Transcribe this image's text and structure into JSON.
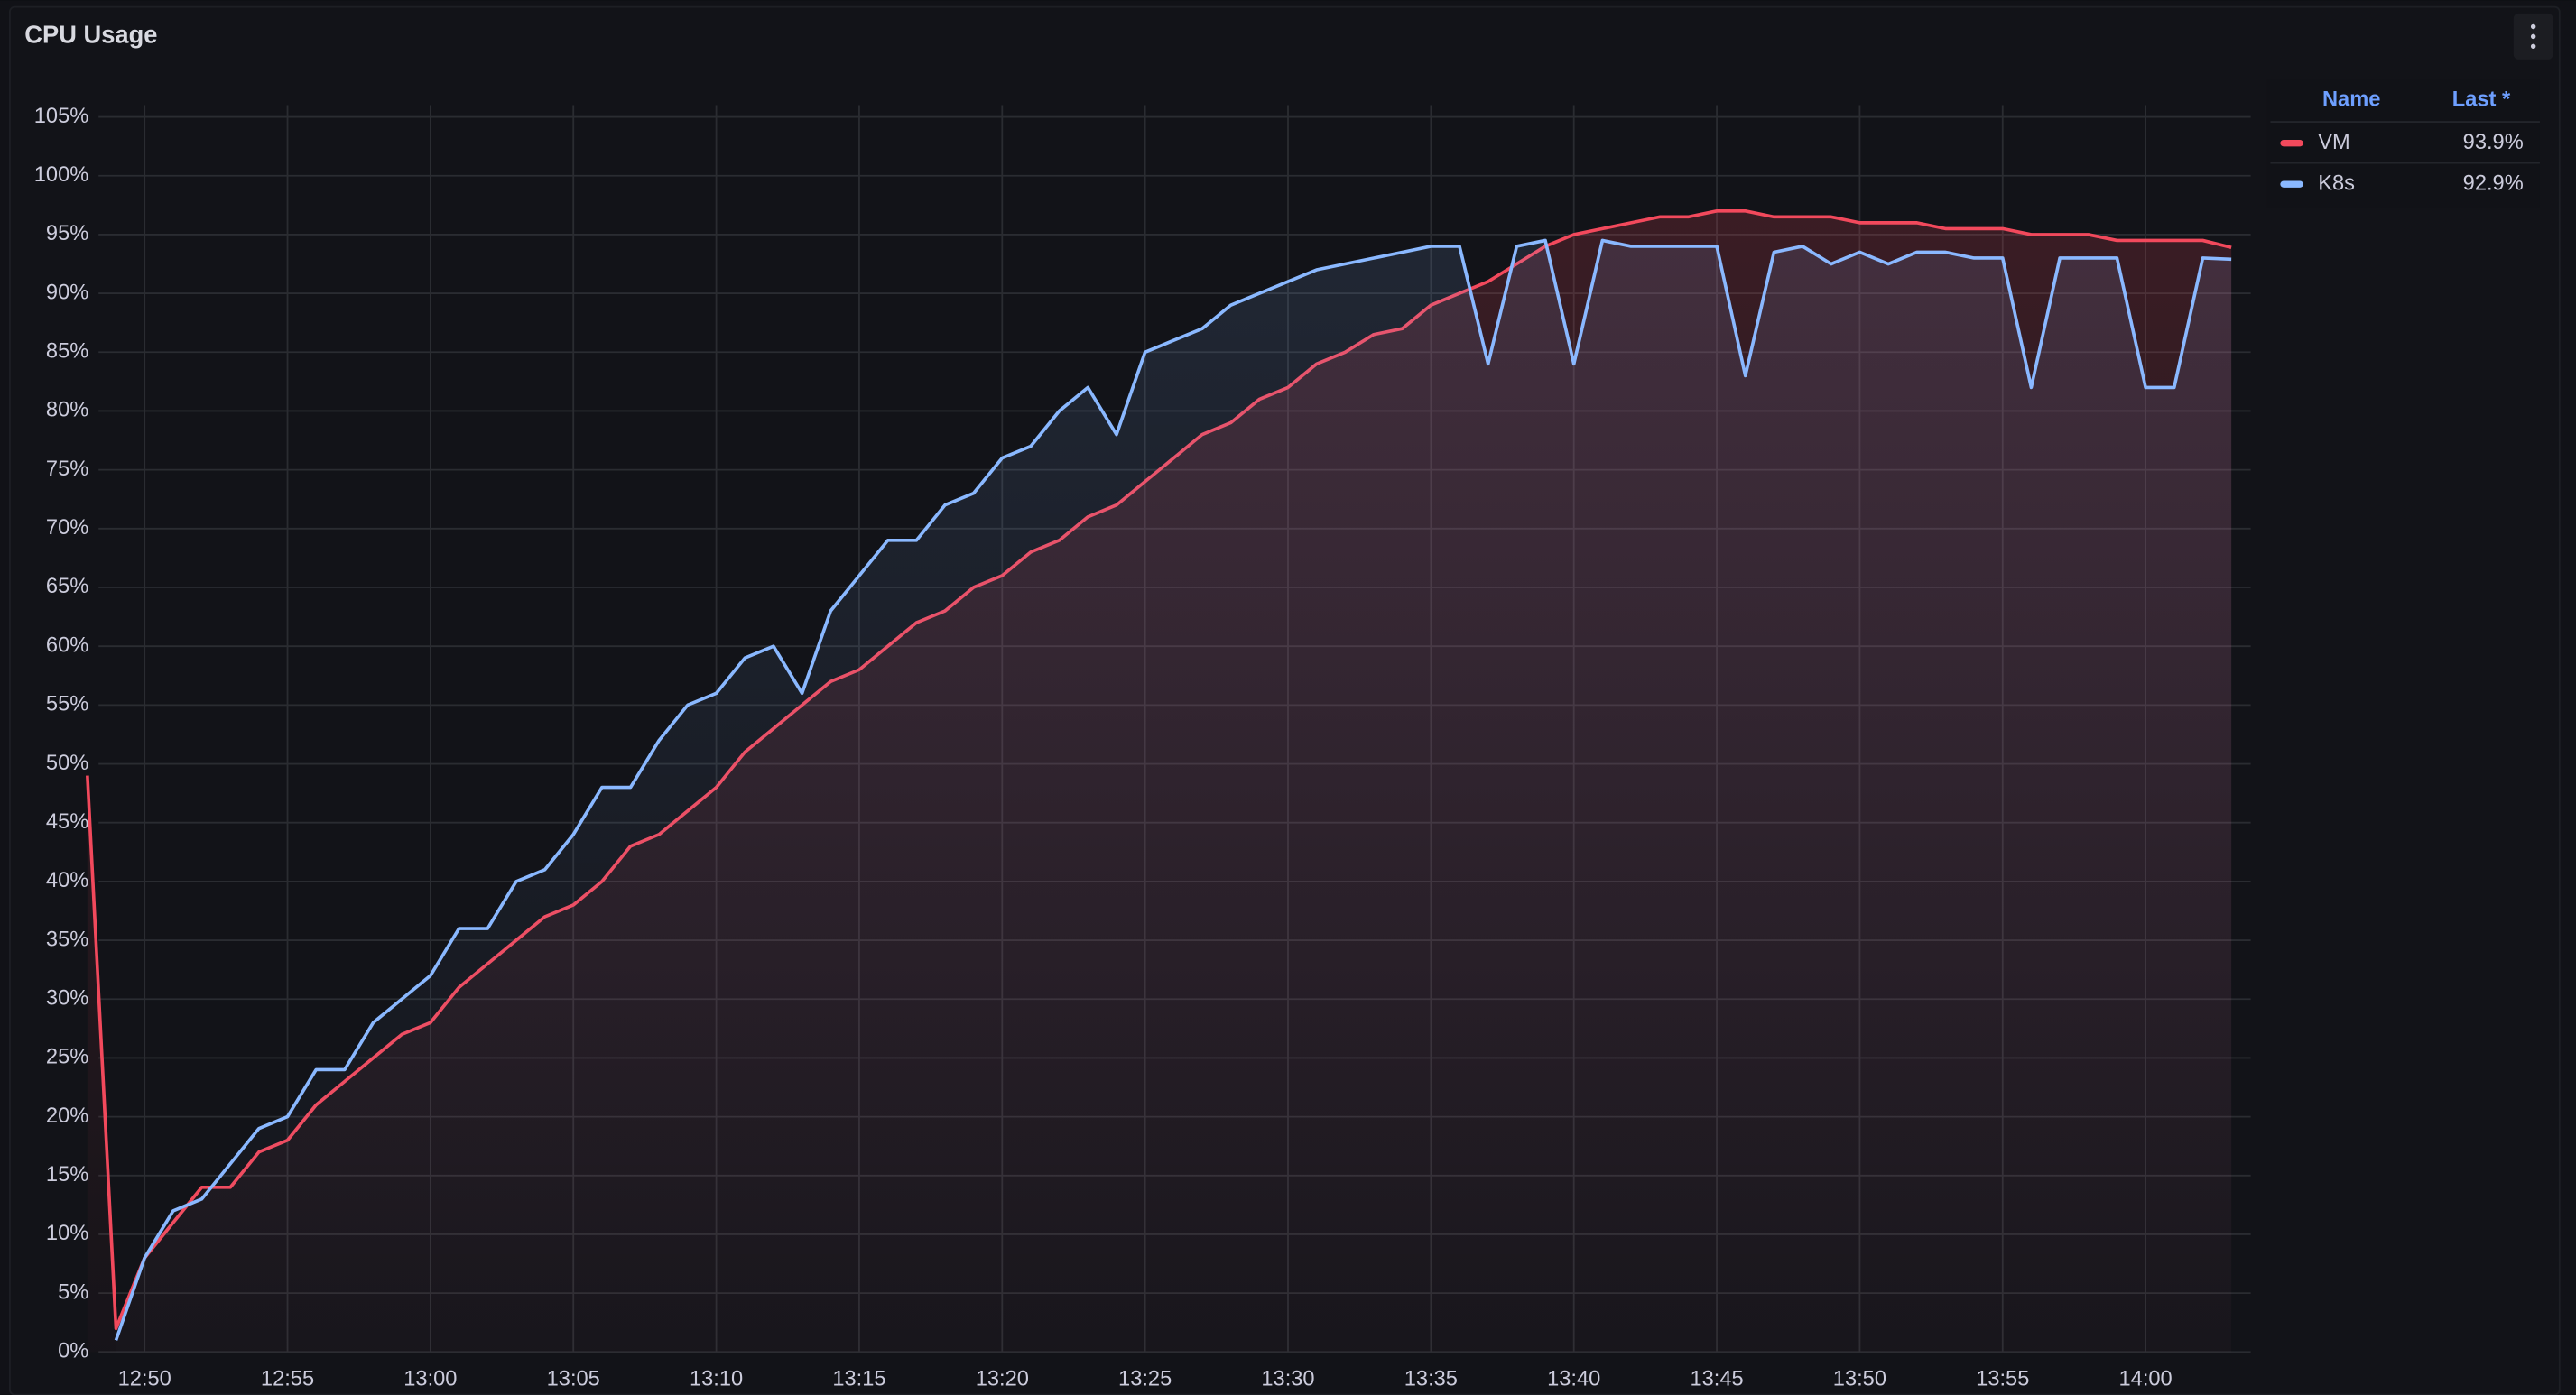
{
  "chart_data": {
    "type": "line",
    "title": "CPU Usage",
    "x": [
      "12:48",
      "12:49",
      "12:50",
      "12:51",
      "12:52",
      "12:53",
      "12:54",
      "12:55",
      "12:56",
      "12:57",
      "12:58",
      "12:59",
      "13:00",
      "13:01",
      "13:02",
      "13:03",
      "13:04",
      "13:05",
      "13:06",
      "13:07",
      "13:08",
      "13:09",
      "13:10",
      "13:11",
      "13:12",
      "13:13",
      "13:14",
      "13:15",
      "13:16",
      "13:17",
      "13:18",
      "13:19",
      "13:20",
      "13:21",
      "13:22",
      "13:23",
      "13:24",
      "13:25",
      "13:26",
      "13:27",
      "13:28",
      "13:29",
      "13:30",
      "13:31",
      "13:32",
      "13:33",
      "13:34",
      "13:35",
      "13:36",
      "13:37",
      "13:38",
      "13:39",
      "13:40",
      "13:41",
      "13:42",
      "13:43",
      "13:44",
      "13:45",
      "13:46",
      "13:47",
      "13:48",
      "13:49",
      "13:50",
      "13:51",
      "13:52",
      "13:53",
      "13:54",
      "13:55",
      "13:56",
      "13:57",
      "13:58",
      "13:59",
      "14:00",
      "14:01",
      "14:02",
      "14:03"
    ],
    "series": [
      {
        "name": "VM",
        "color": "#f2495c",
        "last": {
          "value": 93.9,
          "label": "93.9%"
        },
        "values": [
          49,
          2,
          8,
          11,
          14,
          14,
          17,
          18,
          21,
          23,
          25,
          27,
          28,
          31,
          33,
          35,
          37,
          38,
          40,
          43,
          44,
          46,
          48,
          51,
          53,
          55,
          57,
          58,
          60,
          62,
          63,
          65,
          66,
          68,
          69,
          71,
          72,
          74,
          76,
          78,
          79,
          81,
          82,
          84,
          85,
          86.5,
          87,
          89,
          90,
          91,
          92.5,
          94,
          95,
          95.5,
          96,
          96.5,
          96.5,
          97,
          97,
          96.5,
          96.5,
          96.5,
          96,
          96,
          96,
          95.5,
          95.5,
          95.5,
          95,
          95,
          95,
          94.5,
          94.5,
          94.5,
          94.5,
          93.9
        ]
      },
      {
        "name": "K8s",
        "color": "#8ab8ff",
        "last": {
          "value": 92.9,
          "label": "92.9%"
        },
        "values": [
          null,
          1,
          8,
          12,
          13,
          16,
          19,
          20,
          24,
          24,
          28,
          30,
          32,
          36,
          36,
          40,
          41,
          44,
          48,
          48,
          52,
          55,
          56,
          59,
          60,
          56,
          63,
          66,
          69,
          69,
          72,
          73,
          76,
          77,
          80,
          82,
          78,
          85,
          86,
          87,
          89,
          90,
          91,
          92,
          92.5,
          93,
          93.5,
          94,
          94,
          84,
          94,
          94.5,
          84,
          94.5,
          94,
          94,
          94,
          94,
          83,
          93.5,
          94,
          92.5,
          93.5,
          92.5,
          93.5,
          93.5,
          93,
          93,
          82,
          93,
          93,
          93,
          82,
          82,
          93,
          92.9
        ]
      }
    ],
    "legend_columns": [
      "Name",
      "Last *"
    ],
    "xlim": [
      "12:48",
      "14:04"
    ],
    "xticks": [
      "12:50",
      "12:55",
      "13:00",
      "13:05",
      "13:10",
      "13:15",
      "13:20",
      "13:25",
      "13:30",
      "13:35",
      "13:40",
      "13:45",
      "13:50",
      "13:55",
      "14:00"
    ],
    "ylim": [
      0,
      106
    ],
    "yticks": [
      {
        "value": 0,
        "label": "0%"
      },
      {
        "value": 5,
        "label": "5%"
      },
      {
        "value": 10,
        "label": "10%"
      },
      {
        "value": 15,
        "label": "15%"
      },
      {
        "value": 20,
        "label": "20%"
      },
      {
        "value": 25,
        "label": "25%"
      },
      {
        "value": 30,
        "label": "30%"
      },
      {
        "value": 35,
        "label": "35%"
      },
      {
        "value": 40,
        "label": "40%"
      },
      {
        "value": 45,
        "label": "45%"
      },
      {
        "value": 50,
        "label": "50%"
      },
      {
        "value": 55,
        "label": "55%"
      },
      {
        "value": 60,
        "label": "60%"
      },
      {
        "value": 65,
        "label": "65%"
      },
      {
        "value": 70,
        "label": "70%"
      },
      {
        "value": 75,
        "label": "75%"
      },
      {
        "value": 80,
        "label": "80%"
      },
      {
        "value": 85,
        "label": "85%"
      },
      {
        "value": 90,
        "label": "90%"
      },
      {
        "value": 95,
        "label": "95%"
      },
      {
        "value": 100,
        "label": "100%"
      },
      {
        "value": 105,
        "label": "105%"
      }
    ],
    "grid": true
  }
}
